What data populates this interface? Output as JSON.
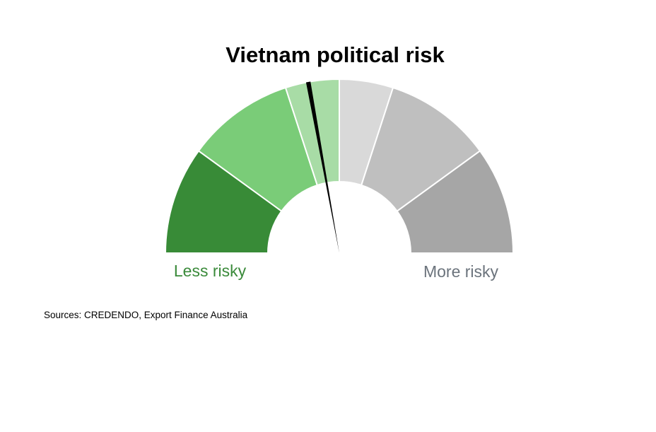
{
  "chart_data": {
    "type": "gauge",
    "title": "Vietnam political risk",
    "scale": {
      "min": 0,
      "max": 7
    },
    "bands": [
      {
        "from": 0,
        "to": 1.4,
        "color": "#388b37",
        "group": "less"
      },
      {
        "from": 1.4,
        "to": 2.8,
        "color": "#7acc78",
        "group": "less"
      },
      {
        "from": 2.8,
        "to": 3.5,
        "color": "#a8dca6",
        "group": "less"
      },
      {
        "from": 3.5,
        "to": 4.2,
        "color": "#d9d9d9",
        "group": "more"
      },
      {
        "from": 4.2,
        "to": 5.6,
        "color": "#bfbfbf",
        "group": "more"
      },
      {
        "from": 5.6,
        "to": 7.0,
        "color": "#a6a6a6",
        "group": "more"
      }
    ],
    "value": 3.1,
    "needle_color": "#000000",
    "low_label": "Less risky",
    "high_label": "More risky",
    "low_label_color": "#3a8a3a",
    "high_label_color": "#6b737c"
  },
  "source": "Sources: CREDENDO, Export Finance Australia"
}
